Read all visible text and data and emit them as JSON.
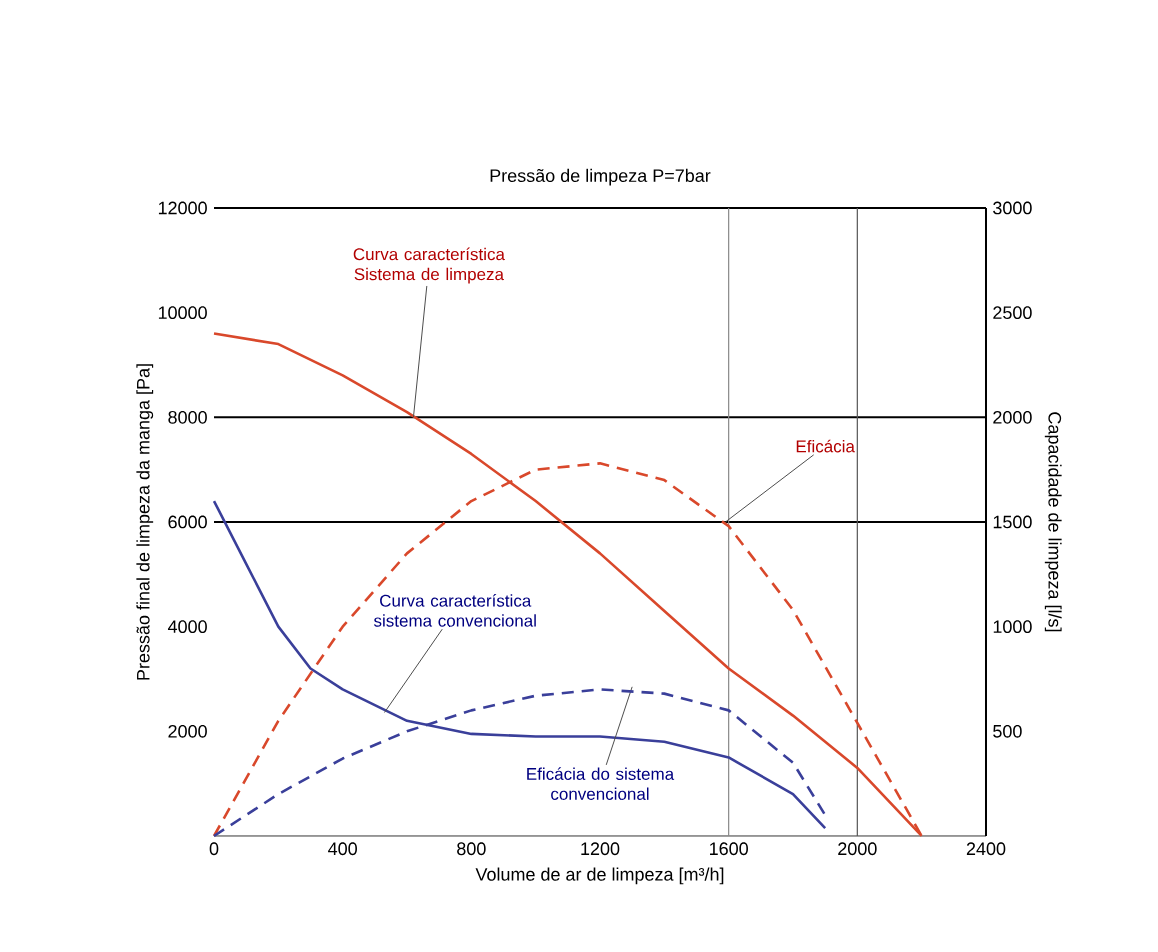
{
  "chart_data": {
    "type": "line",
    "title": "Pressão de limpeza P=7bar",
    "xlabel": "Volume de ar de limpeza [m³/h]",
    "ylabel": "Pressão final de limpeza da manga [Pa]",
    "y2label": "Capacidade de limpeza [l/s]",
    "xlim": [
      0,
      2400
    ],
    "xticks": [
      0,
      400,
      800,
      1200,
      1600,
      2000,
      2400
    ],
    "ylim": [
      0,
      12000
    ],
    "yticks": [
      2000,
      4000,
      6000,
      8000,
      10000,
      12000
    ],
    "y2lim": [
      0,
      3000
    ],
    "y2ticks": [
      500,
      1000,
      1500,
      2000,
      2500,
      3000
    ],
    "series": [
      {
        "type": "line",
        "axis": "y",
        "line_style": "solid",
        "color": "#d9482b",
        "x": [
          0,
          200,
          400,
          600,
          800,
          1000,
          1200,
          1400,
          1600,
          1800,
          2000,
          2200
        ],
        "values": [
          9600,
          9400,
          8800,
          8100,
          7300,
          6400,
          5400,
          4300,
          3200,
          2300,
          1300,
          0
        ]
      },
      {
        "type": "line",
        "axis": "y2",
        "line_style": "dashed",
        "color": "#d9482b",
        "x": [
          0,
          200,
          400,
          600,
          800,
          1000,
          1200,
          1400,
          1600,
          1800,
          2000,
          2200
        ],
        "values": [
          0,
          550,
          1000,
          1350,
          1600,
          1750,
          1780,
          1700,
          1480,
          1080,
          540,
          0
        ]
      },
      {
        "type": "line",
        "axis": "y",
        "line_style": "solid",
        "color": "#3a3f9a",
        "x": [
          0,
          100,
          200,
          300,
          400,
          600,
          800,
          1000,
          1200,
          1400,
          1600,
          1800,
          1900
        ],
        "values": [
          6400,
          5200,
          4000,
          3200,
          2800,
          2200,
          1950,
          1900,
          1900,
          1800,
          1500,
          800,
          150
        ]
      },
      {
        "type": "line",
        "axis": "y2",
        "line_style": "dashed",
        "color": "#3a3f9a",
        "x": [
          0,
          200,
          400,
          600,
          800,
          1000,
          1200,
          1400,
          1600,
          1800,
          1900
        ],
        "values": [
          0,
          200,
          370,
          500,
          600,
          670,
          700,
          680,
          600,
          350,
          100
        ]
      }
    ],
    "ref_lines": [
      {
        "axis": "y",
        "value": 8000,
        "color": "#000000"
      },
      {
        "axis": "y",
        "value": 6000,
        "color": "#000000"
      },
      {
        "axis": "x",
        "value": 1600,
        "color": "#888888"
      },
      {
        "axis": "x",
        "value": 2000,
        "color": "#555555"
      }
    ],
    "annotations": [
      {
        "text": "Curva característica Sistema de limpeza",
        "x": 620,
        "y": 8000
      },
      {
        "text": "Eficácia",
        "x": 1590,
        "y": 6000
      },
      {
        "text": "Curva característica sistema convencional",
        "x": 530,
        "y": 2360
      },
      {
        "text": "Eficácia do sistema convencional",
        "x": 1300,
        "y": 2850
      }
    ]
  }
}
